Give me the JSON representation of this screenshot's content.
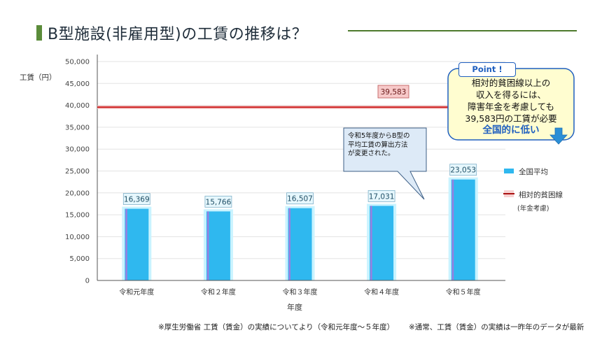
{
  "title": "B型施設(非雇用型)の工賃の推移は？",
  "chart_data": {
    "type": "bar",
    "ylabel": "工賃（円）",
    "xlabel": "年度",
    "ylim": [
      0,
      50000
    ],
    "yticks": [
      "0",
      "5,000",
      "10,000",
      "15,000",
      "20,000",
      "25,000",
      "30,000",
      "35,000",
      "40,000",
      "45,000",
      "50,000"
    ],
    "categories": [
      "令和元年度",
      "令和２年度",
      "令和３年度",
      "令和４年度",
      "令和５年度"
    ],
    "series": [
      {
        "name": "全国平均",
        "values": [
          16369,
          15766,
          16507,
          17031,
          23053
        ],
        "labels": [
          "16,369",
          "15,766",
          "16,507",
          "17,031",
          "23,053"
        ],
        "color": "#2fb8ef"
      }
    ],
    "reference_line": {
      "name": "相対的貧困線",
      "sublabel": "(年金考慮)",
      "value": 39583,
      "label": "39,583",
      "color": "#cc1a1a"
    },
    "grid": true,
    "legend_position": "right"
  },
  "callout_note": {
    "lines": [
      "令和5年度からB型の",
      "平均工賃の算出方法",
      "が変更された。"
    ]
  },
  "point": {
    "tag": "Point !",
    "lines": [
      "相対的貧困線以上の",
      "収入を得るには、",
      "障害年金を考慮しても",
      "39,583円の工賃が必要"
    ],
    "emphasis": "全国的に低い"
  },
  "footnotes": {
    "left": "※厚生労働省 工賃（賃金）の実績についてより（令和元年度～５年度）",
    "right": "※通常、工賃（賃金）の実績は一昨年のデータが最新"
  },
  "colors": {
    "accent": "#5b8c3a",
    "bar": "#2fb8ef",
    "bar_glow": "#c9f3ff",
    "line": "#cc1a1a",
    "point_bg": "#fffdd0",
    "point_border": "#1f5fbf"
  }
}
